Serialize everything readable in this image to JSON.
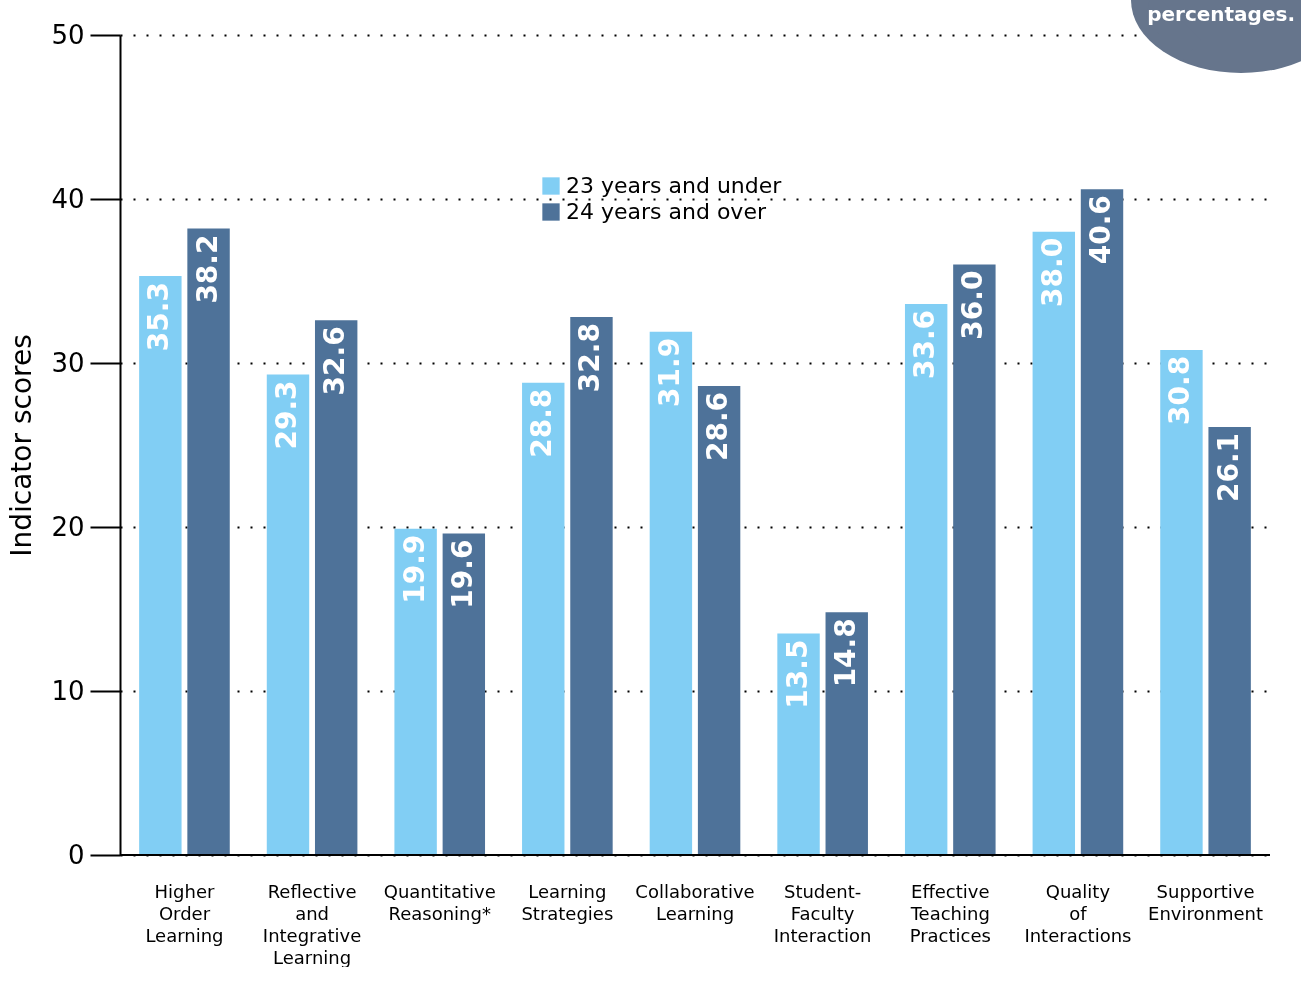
{
  "chart_data": {
    "type": "bar",
    "ylabel": "Indicator scores",
    "categories": [
      "Higher Order Learning",
      "Reflective and Integrative Learning",
      "Quantitative Reasoning*",
      "Learning Strategies",
      "Collaborative Learning",
      "Student-Faculty Interaction",
      "Effective Teaching Practices",
      "Quality of Interactions",
      "Supportive Environment"
    ],
    "series": [
      {
        "name": "23 years and under",
        "color": "#81cef4",
        "values": [
          35.3,
          29.3,
          19.9,
          28.8,
          31.9,
          13.5,
          33.6,
          38.0,
          30.8
        ],
        "value_labels": [
          "35.3",
          "29.3",
          "19.9",
          "28.8",
          "31.9",
          "13.5",
          "33.6",
          "38.0",
          "30.8"
        ]
      },
      {
        "name": "24 years and over",
        "color": "#4e7299",
        "values": [
          38.2,
          32.6,
          19.6,
          32.8,
          28.6,
          14.8,
          36.0,
          40.6,
          26.1
        ],
        "value_labels": [
          "38.2",
          "32.6",
          "19.6",
          "32.8",
          "28.6",
          "14.8",
          "36.0",
          "40.6",
          "26.1"
        ]
      }
    ],
    "ylim": [
      0,
      50
    ],
    "yticks": [
      0,
      10,
      20,
      30,
      40,
      50
    ],
    "grid": "y",
    "legend": "top",
    "annotations": [
      "percentages."
    ]
  }
}
